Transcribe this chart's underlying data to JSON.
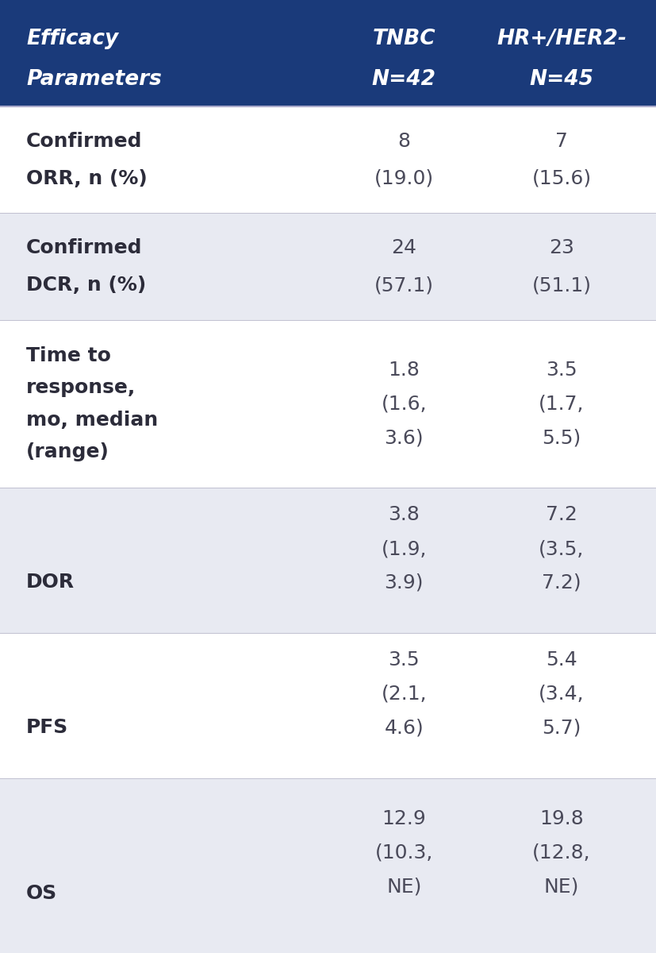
{
  "header_bg": "#1a3a7a",
  "header_text_color": "#ffffff",
  "row_bg_light": "#e8eaf2",
  "row_bg_white": "#ffffff",
  "body_text_color": "#4a4a5a",
  "label_text_color": "#2c2c3a",
  "header": {
    "col0": [
      "Efficacy",
      "Parameters"
    ],
    "col1": [
      "TNBC",
      "N=42"
    ],
    "col2": [
      "HR+/HER2-",
      "N=45"
    ]
  },
  "rows": [
    {
      "label": [
        "Confirmed",
        "ORR, n (%)"
      ],
      "val1": [
        "8",
        "(19.0)"
      ],
      "val2": [
        "7",
        "(15.6)"
      ],
      "bg": "#ffffff"
    },
    {
      "label": [
        "Confirmed",
        "DCR, n (%)"
      ],
      "val1": [
        "24",
        "(57.1)"
      ],
      "val2": [
        "23",
        "(51.1)"
      ],
      "bg": "#e8eaf2"
    },
    {
      "label": [
        "Time to",
        "response,",
        "mo, median",
        "(range)"
      ],
      "val1": [
        "1.8",
        "(1.6,",
        "3.6)"
      ],
      "val2": [
        "3.5",
        "(1.7,",
        "5.5)"
      ],
      "bg": "#ffffff"
    },
    {
      "label": [
        "",
        "DOR",
        ""
      ],
      "val1": [
        "3.8",
        "(1.9,",
        "3.9)"
      ],
      "val2": [
        "7.2",
        "(3.5,",
        "7.2)"
      ],
      "bg": "#e8eaf2"
    },
    {
      "label": [
        "",
        "PFS",
        ""
      ],
      "val1": [
        "3.5",
        "(2.1,",
        "4.6)"
      ],
      "val2": [
        "5.4",
        "(3.4,",
        "5.7)"
      ],
      "bg": "#ffffff"
    },
    {
      "label": [
        "",
        "OS",
        ""
      ],
      "val1": [
        "12.9",
        "(10.3,",
        "NE)"
      ],
      "val2": [
        "19.8",
        "(12.8,",
        "NE)"
      ],
      "bg": "#e8eaf2"
    }
  ],
  "fig_width": 8.28,
  "fig_height": 12.0,
  "dpi": 100
}
